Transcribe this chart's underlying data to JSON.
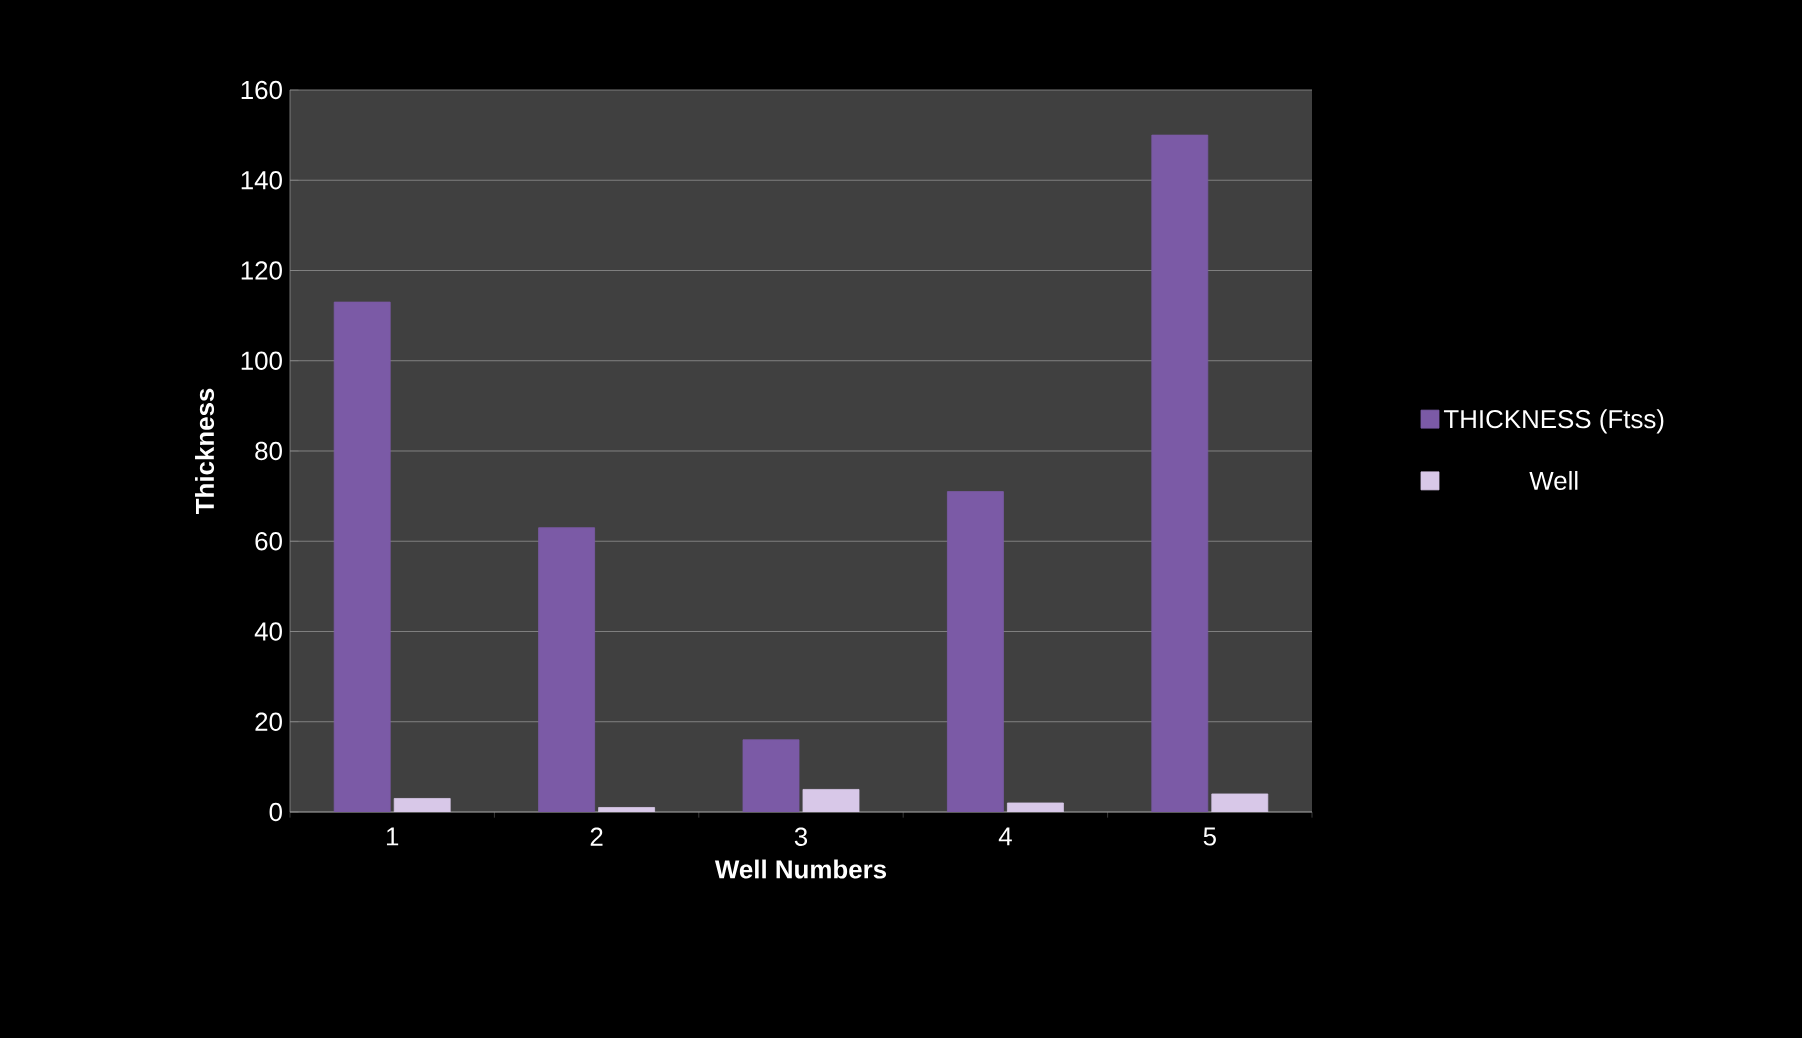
{
  "chart_data": {
    "type": "bar",
    "xlabel": "Well Numbers",
    "ylabel": "Thickness",
    "categories": [
      "1",
      "2",
      "3",
      "4",
      "5"
    ],
    "series": [
      {
        "name": "THICKNESS (Ftss)",
        "color": "#7b5aa6",
        "values": [
          113,
          63,
          16,
          71,
          150
        ]
      },
      {
        "name": "Well",
        "color": "#d8c8e8",
        "values": [
          3,
          1,
          5,
          2,
          4
        ]
      }
    ],
    "ylim": [
      0,
      160
    ],
    "yticks": [
      0,
      20,
      40,
      60,
      80,
      100,
      120,
      140,
      160
    ],
    "grid": "y",
    "legend": "right"
  }
}
